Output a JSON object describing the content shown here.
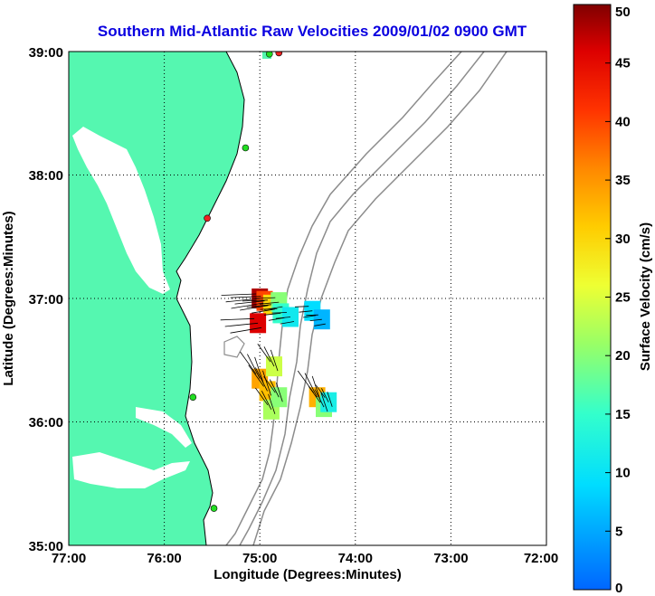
{
  "title": "Southern Mid-Atlantic Raw Velocities 2009/01/02 0900 GMT",
  "xlabel": "Longitude (Degrees:Minutes)",
  "ylabel": "Latitude (Degrees:Minutes)",
  "x_ticks": [
    "77:00",
    "76:00",
    "75:00",
    "74:00",
    "73:00",
    "72:00"
  ],
  "y_ticks": [
    "39:00",
    "38:00",
    "37:00",
    "36:00",
    "35:00"
  ],
  "colorbar": {
    "label": "Surface Velocity (cm/s)",
    "ticks": [
      "50",
      "45",
      "40",
      "35",
      "30",
      "25",
      "20",
      "15",
      "10",
      "5",
      "0"
    ],
    "range": [
      0,
      50
    ]
  },
  "colors": {
    "land": "#55f7b0",
    "coast": "#000000",
    "isobath": "#8c8c8c",
    "title": "#0a00e0",
    "station_active": "#22dd22",
    "station_inactive": "#ee2222"
  },
  "chart_data": {
    "type": "map",
    "xlim_deg_west": [
      77.0,
      72.0
    ],
    "ylim_deg_north": [
      35.0,
      39.0
    ],
    "grid": "dotted",
    "stations": [
      {
        "lon": -74.8,
        "lat": 38.99,
        "status": "inactive"
      },
      {
        "lon": -74.9,
        "lat": 38.98,
        "status": "active"
      },
      {
        "lon": -75.15,
        "lat": 38.22,
        "status": "active"
      },
      {
        "lon": -75.55,
        "lat": 37.65,
        "status": "inactive"
      },
      {
        "lon": -75.7,
        "lat": 36.2,
        "status": "active"
      },
      {
        "lon": -75.48,
        "lat": 35.3,
        "status": "active"
      }
    ],
    "velocity_cells": [
      {
        "lon": -75.0,
        "lat": 37.0,
        "speed": 48
      },
      {
        "lon": -74.95,
        "lat": 36.98,
        "speed": 40
      },
      {
        "lon": -74.88,
        "lat": 36.95,
        "speed": 30
      },
      {
        "lon": -74.8,
        "lat": 36.97,
        "speed": 20
      },
      {
        "lon": -74.78,
        "lat": 36.88,
        "speed": 15
      },
      {
        "lon": -74.68,
        "lat": 36.85,
        "speed": 11
      },
      {
        "lon": -74.45,
        "lat": 36.9,
        "speed": 9
      },
      {
        "lon": -74.35,
        "lat": 36.83,
        "speed": 6
      },
      {
        "lon": -75.02,
        "lat": 36.8,
        "speed": 46
      },
      {
        "lon": -75.0,
        "lat": 36.35,
        "speed": 34
      },
      {
        "lon": -74.92,
        "lat": 36.25,
        "speed": 32
      },
      {
        "lon": -74.88,
        "lat": 36.1,
        "speed": 22
      },
      {
        "lon": -74.8,
        "lat": 36.2,
        "speed": 20
      },
      {
        "lon": -74.85,
        "lat": 36.45,
        "speed": 24
      },
      {
        "lon": -74.4,
        "lat": 36.2,
        "speed": 33
      },
      {
        "lon": -74.33,
        "lat": 36.12,
        "speed": 20
      },
      {
        "lon": -74.28,
        "lat": 36.16,
        "speed": 12
      }
    ]
  }
}
